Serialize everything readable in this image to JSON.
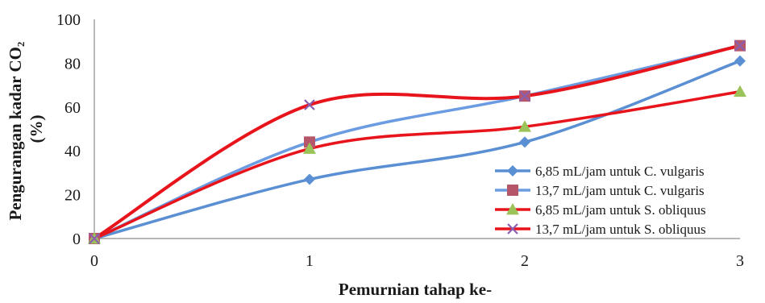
{
  "chart_data": {
    "type": "line",
    "smooth": true,
    "title": "",
    "xlabel": "Pemurnian tahap ke-",
    "ylabel_lines": [
      "Pengurangan kadar CO₂",
      "(%)"
    ],
    "x": [
      0,
      1,
      2,
      3
    ],
    "xticks": [
      "0",
      "1",
      "2",
      "3"
    ],
    "xlim": [
      0,
      3
    ],
    "ylim": [
      0,
      100
    ],
    "yticks": [
      "0",
      "20",
      "40",
      "60",
      "80",
      "100"
    ],
    "grid": false,
    "legend_position": "right",
    "series": [
      {
        "name": "6,85 mL/jam untuk C. vulgaris",
        "values": [
          0,
          27,
          44,
          81
        ],
        "color": "#5b8fd4",
        "marker": "diamond"
      },
      {
        "name": "13,7 mL/jam untuk C. vulgaris",
        "values": [
          0,
          44,
          65,
          88
        ],
        "color": "#6b9be0",
        "marker": "square",
        "marker_color": "#b5566b"
      },
      {
        "name": "6,85 mL/jam untuk S. obliquus",
        "values": [
          0,
          41,
          51,
          67
        ],
        "color": "#e8141c",
        "marker": "triangle",
        "marker_color": "#9bc35a"
      },
      {
        "name": "13,7 mL/jam untuk S. obliquus",
        "values": [
          0,
          61,
          65,
          88
        ],
        "color": "#e8141c",
        "marker": "x",
        "marker_color": "#8a5fb0"
      }
    ]
  }
}
